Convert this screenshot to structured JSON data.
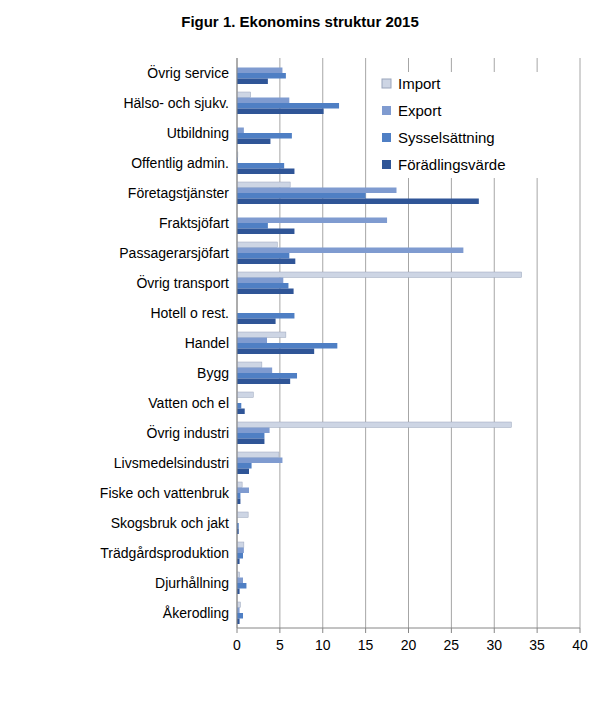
{
  "chart_data": {
    "type": "bar",
    "orientation": "horizontal",
    "title": "Figur 1. Ekonomins struktur 2015",
    "categories": [
      "Övrig service",
      "Hälso- och sjukv.",
      "Utbildning",
      "Offentlig admin.",
      "Företagstjänster",
      "Fraktsjöfart",
      "Passagerarsjöfart",
      "Övrig transport",
      "Hotell o rest.",
      "Handel",
      "Bygg",
      "Vatten och el",
      "Övrig industri",
      "Livsmedelsindustri",
      "Fiske och vattenbruk",
      "Skogsbruk och jakt",
      "Trädgårdsproduktion",
      "Djurhållning",
      "Åkerodling"
    ],
    "series": [
      {
        "name": "Import",
        "color": "#cdd5e4",
        "values": [
          0,
          1.6,
          0,
          0.1,
          6.2,
          0,
          4.7,
          33.2,
          0,
          5.7,
          2.9,
          1.9,
          32.0,
          4.9,
          0.6,
          1.3,
          0.8,
          0.3,
          0.4
        ]
      },
      {
        "name": "Export",
        "color": "#7f9bd0",
        "values": [
          5.3,
          6.1,
          0.8,
          0.1,
          18.6,
          17.5,
          26.4,
          5.4,
          0,
          3.5,
          4.1,
          0,
          3.8,
          5.3,
          1.4,
          0,
          0.8,
          0.7,
          0.3
        ]
      },
      {
        "name": "Sysselsättning",
        "color": "#4f7fc4",
        "values": [
          5.7,
          11.9,
          6.4,
          5.5,
          15.0,
          3.6,
          6.1,
          6.0,
          6.7,
          11.7,
          7.0,
          0.5,
          3.2,
          1.7,
          0.4,
          0.2,
          0.7,
          1.1,
          0.7
        ]
      },
      {
        "name": "Förädlingsvärde",
        "color": "#2f5597",
        "values": [
          3.6,
          10.1,
          3.9,
          6.7,
          28.2,
          6.7,
          6.8,
          6.6,
          4.5,
          9.0,
          6.2,
          0.9,
          3.2,
          1.4,
          0.4,
          0.2,
          0.3,
          0.3,
          0.3
        ]
      }
    ],
    "xlim": [
      0,
      40
    ],
    "xticks": [
      0,
      5,
      10,
      15,
      20,
      25,
      30,
      35,
      40
    ],
    "grid": true,
    "legend": "top-right"
  }
}
